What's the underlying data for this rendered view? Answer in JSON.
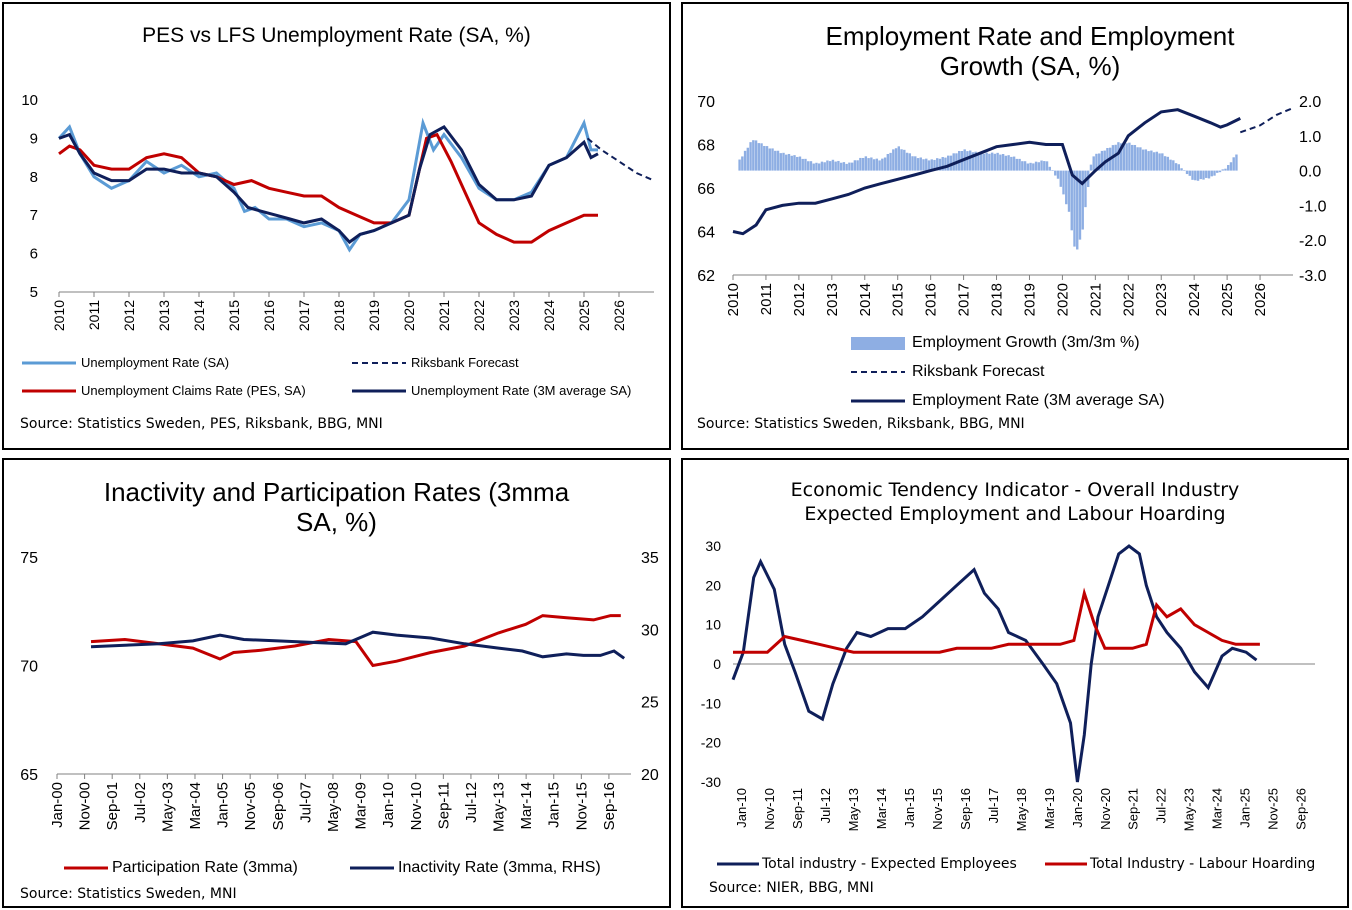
{
  "colors": {
    "light_blue": "#5b9bd5",
    "bar_blue": "#8eaee3",
    "navy": "#0f1f5a",
    "red": "#c00000",
    "axis": "#808080",
    "grid": "#d9d9d9"
  },
  "charts": [
    {
      "title": "PES vs LFS Unemployment Rate (SA, %)",
      "source": "Source: Statistics Sweden, PES, Riksbank, BBG, MNI",
      "legend": [
        "Unemployment Rate (SA)",
        "Riksbank Forecast",
        "Unemployment Claims Rate (PES, SA)",
        "Unemployment Rate (3M average  SA)"
      ]
    },
    {
      "title_line1": "Employment Rate and Employment",
      "title_line2": "Growth (SA, %)",
      "source": "Source: Statistics Sweden, Riksbank, BBG, MNI",
      "legend": [
        "Employment Growth (3m/3m %)",
        "Riksbank Forecast",
        "Employment Rate (3M average SA)"
      ]
    },
    {
      "title_line1": "Inactivity  and Participation Rates (3mma",
      "title_line2": "SA, %)",
      "source": "Source: Statistics Sweden, MNI",
      "legend": [
        "Participation Rate (3mma)",
        "Inactivity Rate (3mma, RHS)"
      ]
    },
    {
      "title_line1": "Economic Tendency Indicator - Overall Industry",
      "title_line2": "Expected Employment and Labour Hoarding",
      "source": "Source: NIER, BBG, MNI",
      "legend": [
        "Total industry - Expected Employees",
        "Total Industry - Labour Hoarding"
      ]
    }
  ],
  "chart_data": [
    {
      "type": "line",
      "title": "PES vs LFS Unemployment Rate (SA, %)",
      "x_ticks": [
        "2010",
        "2011",
        "2012",
        "2013",
        "2014",
        "2015",
        "2016",
        "2017",
        "2018",
        "2019",
        "2020",
        "2021",
        "2022",
        "2023",
        "2024",
        "2025",
        "2026"
      ],
      "xlim": [
        2010,
        2027
      ],
      "ylim": [
        5,
        10
      ],
      "y_ticks": [
        "5",
        "6",
        "7",
        "8",
        "9",
        "10"
      ],
      "series": [
        {
          "name": "Unemployment Rate (SA)",
          "x": [
            2010,
            2010.3,
            2010.6,
            2011,
            2011.5,
            2012,
            2012.5,
            2013,
            2013.5,
            2014,
            2014.5,
            2015,
            2015.3,
            2015.6,
            2016,
            2016.5,
            2017,
            2017.5,
            2018,
            2018.3,
            2018.6,
            2019,
            2019.5,
            2020,
            2020.4,
            2020.7,
            2021,
            2021.5,
            2022,
            2022.5,
            2023,
            2023.5,
            2024,
            2024.5,
            2025,
            2025.2,
            2025.4
          ],
          "y": [
            9.0,
            9.3,
            8.6,
            8.0,
            7.7,
            7.9,
            8.4,
            8.1,
            8.3,
            8.0,
            8.1,
            7.7,
            7.1,
            7.2,
            6.9,
            6.9,
            6.7,
            6.8,
            6.6,
            6.1,
            6.5,
            6.6,
            6.8,
            7.4,
            9.4,
            8.7,
            9.1,
            8.5,
            7.7,
            7.4,
            7.4,
            7.6,
            8.3,
            8.5,
            9.4,
            8.7,
            8.7
          ]
        },
        {
          "name": "Unemployment Claims Rate (PES, SA)",
          "x": [
            2010,
            2010.3,
            2010.6,
            2011,
            2011.5,
            2012,
            2012.5,
            2013,
            2013.5,
            2014,
            2014.5,
            2015,
            2015.5,
            2016,
            2016.5,
            2017,
            2017.5,
            2018,
            2018.5,
            2019,
            2019.5,
            2020,
            2020.5,
            2020.8,
            2021.2,
            2021.6,
            2022,
            2022.5,
            2023,
            2023.5,
            2024,
            2024.5,
            2025,
            2025.4
          ],
          "y": [
            8.6,
            8.8,
            8.7,
            8.3,
            8.2,
            8.2,
            8.5,
            8.6,
            8.5,
            8.1,
            8.0,
            7.8,
            7.9,
            7.7,
            7.6,
            7.5,
            7.5,
            7.2,
            7.0,
            6.8,
            6.8,
            7.0,
            9.0,
            9.1,
            8.4,
            7.6,
            6.8,
            6.5,
            6.3,
            6.3,
            6.6,
            6.8,
            7.0,
            7.0
          ]
        },
        {
          "name": "Unemployment Rate (3M average  SA)",
          "x": [
            2010,
            2010.3,
            2010.6,
            2011,
            2011.5,
            2012,
            2012.5,
            2013,
            2013.5,
            2014,
            2014.5,
            2015,
            2015.4,
            2015.8,
            2016.2,
            2016.6,
            2017,
            2017.5,
            2018,
            2018.3,
            2018.6,
            2019,
            2019.5,
            2020,
            2020.3,
            2020.6,
            2021,
            2021.5,
            2022,
            2022.5,
            2023,
            2023.5,
            2024,
            2024.5,
            2025,
            2025.2,
            2025.4
          ],
          "y": [
            9.0,
            9.1,
            8.6,
            8.1,
            7.9,
            7.9,
            8.2,
            8.2,
            8.1,
            8.1,
            8.0,
            7.6,
            7.2,
            7.1,
            7.0,
            6.9,
            6.8,
            6.9,
            6.6,
            6.3,
            6.5,
            6.6,
            6.8,
            7.0,
            8.2,
            9.1,
            9.3,
            8.7,
            7.8,
            7.4,
            7.4,
            7.5,
            8.3,
            8.5,
            8.9,
            8.5,
            8.6
          ]
        },
        {
          "name": "Riksbank Forecast",
          "x": [
            2025.1,
            2025.5,
            2026,
            2026.5,
            2027
          ],
          "y": [
            9.0,
            8.7,
            8.4,
            8.1,
            7.9
          ]
        }
      ]
    },
    {
      "type": "bar+line",
      "title": "Employment Rate and Employment Growth (SA, %)",
      "x_ticks": [
        "2010",
        "2011",
        "2012",
        "2013",
        "2014",
        "2015",
        "2016",
        "2017",
        "2018",
        "2019",
        "2020",
        "2021",
        "2022",
        "2023",
        "2024",
        "2025",
        "2026"
      ],
      "xlim": [
        2010,
        2027
      ],
      "ylim_left": [
        62,
        70
      ],
      "y_ticks_left": [
        "62",
        "64",
        "66",
        "68",
        "70"
      ],
      "ylim_right": [
        -3,
        2
      ],
      "y_ticks_right": [
        "-3.0",
        "-2.0",
        "-1.0",
        "0.0",
        "1.0",
        "2.0"
      ],
      "series": [
        {
          "name": "Employment Rate (3M average SA)",
          "axis": "left",
          "x": [
            2010,
            2010.3,
            2010.7,
            2011,
            2011.5,
            2012,
            2012.5,
            2013,
            2013.5,
            2014,
            2014.5,
            2015,
            2015.5,
            2016,
            2016.5,
            2017,
            2017.5,
            2018,
            2018.5,
            2019,
            2019.5,
            2020,
            2020.3,
            2020.6,
            2021,
            2021.3,
            2021.7,
            2022,
            2022.5,
            2023,
            2023.5,
            2024,
            2024.5,
            2024.8,
            2025,
            2025.4
          ],
          "y": [
            64.0,
            63.9,
            64.3,
            65.0,
            65.2,
            65.3,
            65.3,
            65.5,
            65.7,
            66.0,
            66.2,
            66.4,
            66.6,
            66.8,
            67.0,
            67.3,
            67.6,
            67.9,
            68.0,
            68.1,
            68.0,
            68.0,
            66.6,
            66.2,
            66.8,
            67.2,
            67.6,
            68.4,
            69.0,
            69.5,
            69.6,
            69.3,
            69.0,
            68.8,
            68.9,
            69.2
          ]
        },
        {
          "name": "Employment Growth (3m/3m %)",
          "axis": "right",
          "x": [
            2010.2,
            2010.6,
            2011,
            2011.5,
            2012,
            2012.5,
            2013,
            2013.5,
            2014,
            2014.5,
            2015,
            2015.5,
            2016,
            2016.5,
            2017,
            2017.5,
            2018,
            2018.5,
            2019,
            2019.5,
            2019.9,
            2020.2,
            2020.4,
            2020.6,
            2020.9,
            2021.3,
            2021.7,
            2022,
            2022.5,
            2023,
            2023.5,
            2024,
            2024.5,
            2025,
            2025.3
          ],
          "y": [
            0.3,
            0.9,
            0.7,
            0.5,
            0.4,
            0.2,
            0.3,
            0.2,
            0.4,
            0.3,
            0.7,
            0.4,
            0.3,
            0.4,
            0.6,
            0.5,
            0.5,
            0.4,
            0.2,
            0.3,
            -0.3,
            -1.2,
            -2.4,
            -1.8,
            0.4,
            0.6,
            0.8,
            0.8,
            0.6,
            0.5,
            0.2,
            -0.3,
            -0.2,
            0.1,
            0.5
          ]
        },
        {
          "name": "Riksbank Forecast",
          "axis": "right",
          "x": [
            2025.4,
            2026,
            2026.5,
            2027
          ],
          "y": [
            1.1,
            1.3,
            1.6,
            1.8
          ]
        }
      ]
    },
    {
      "type": "line",
      "title": "Inactivity  and Participation Rates (3mma SA, %)",
      "x_ticks": [
        "Jan-00",
        "Nov-00",
        "Sep-01",
        "Jul-02",
        "May-03",
        "Mar-04",
        "Jan-05",
        "Nov-05",
        "Sep-06",
        "Jul-07",
        "May-08",
        "Mar-09",
        "Jan-10",
        "Nov-10",
        "Sep-11",
        "Jul-12",
        "May-13",
        "Mar-14",
        "Jan-15",
        "Nov-15",
        "Sep-16"
      ],
      "xlim": [
        2000.0,
        2016.9
      ],
      "ylim_left": [
        65,
        75
      ],
      "y_ticks_left": [
        "65",
        "70",
        "75"
      ],
      "ylim_right": [
        20,
        35
      ],
      "y_ticks_right": [
        "20",
        "25",
        "30",
        "35"
      ],
      "series": [
        {
          "name": "Participation Rate (3mma)",
          "axis": "left",
          "x": [
            2001,
            2002,
            2003,
            2004,
            2004.8,
            2005.2,
            2006,
            2007,
            2008,
            2008.8,
            2009.3,
            2010,
            2011,
            2012,
            2013,
            2013.8,
            2014.3,
            2015,
            2015.8,
            2016.3,
            2016.6
          ],
          "y": [
            71.1,
            71.2,
            71.0,
            70.8,
            70.3,
            70.6,
            70.7,
            70.9,
            71.2,
            71.1,
            70.0,
            70.2,
            70.6,
            70.9,
            71.5,
            71.9,
            72.3,
            72.2,
            72.1,
            72.3,
            72.3
          ]
        },
        {
          "name": "Inactivity Rate (3mma, RHS)",
          "axis": "right",
          "x": [
            2001,
            2002,
            2003,
            2004,
            2004.8,
            2005.5,
            2006.5,
            2007.5,
            2008.5,
            2009.3,
            2010,
            2011,
            2012,
            2013,
            2013.7,
            2014.3,
            2015,
            2015.5,
            2016,
            2016.4,
            2016.7
          ],
          "y": [
            28.8,
            28.9,
            29.0,
            29.2,
            29.6,
            29.3,
            29.2,
            29.1,
            29.0,
            29.8,
            29.6,
            29.4,
            29.0,
            28.7,
            28.5,
            28.1,
            28.3,
            28.2,
            28.2,
            28.5,
            28.0
          ]
        }
      ]
    },
    {
      "type": "line",
      "title": "Economic Tendency Indicator - Overall Industry Expected Employment and Labour Hoarding",
      "x_ticks": [
        "Jan-10",
        "Nov-10",
        "Sep-11",
        "Jul-12",
        "May-13",
        "Mar-14",
        "Jan-15",
        "Nov-15",
        "Sep-16",
        "Jul-17",
        "May-18",
        "Mar-19",
        "Jan-20",
        "Nov-20",
        "Sep-21",
        "Jul-22",
        "May-23",
        "Mar-24",
        "Jan-25",
        "Nov-25",
        "Sep-26"
      ],
      "xlim": [
        2010.0,
        2026.9
      ],
      "ylim": [
        -30,
        30
      ],
      "y_ticks": [
        "-30",
        "-20",
        "-10",
        "0",
        "10",
        "20",
        "30"
      ],
      "series": [
        {
          "name": "Total industry - Expected Employees",
          "x": [
            2010,
            2010.3,
            2010.6,
            2010.8,
            2011.2,
            2011.5,
            2011.8,
            2012.2,
            2012.6,
            2012.9,
            2013.3,
            2013.6,
            2014,
            2014.5,
            2015,
            2015.5,
            2016,
            2016.5,
            2017,
            2017.3,
            2017.7,
            2018,
            2018.5,
            2019,
            2019.4,
            2019.8,
            2020,
            2020.2,
            2020.4,
            2020.6,
            2020.9,
            2021.2,
            2021.5,
            2021.8,
            2022,
            2022.3,
            2022.6,
            2023,
            2023.4,
            2023.8,
            2024.2,
            2024.5,
            2024.9,
            2025.2
          ],
          "y": [
            -4,
            3,
            22,
            26,
            19,
            5,
            -2,
            -12,
            -14,
            -5,
            4,
            8,
            7,
            9,
            9,
            12,
            16,
            20,
            24,
            18,
            14,
            8,
            6,
            0,
            -5,
            -15,
            -30,
            -18,
            0,
            12,
            20,
            28,
            32,
            28,
            20,
            12,
            8,
            4,
            -2,
            -6,
            2,
            4,
            3,
            1
          ]
        },
        {
          "name": "Total Industry - Labour Hoarding",
          "x": [
            2010,
            2010.5,
            2011,
            2011.5,
            2012,
            2012.5,
            2013,
            2013.5,
            2014,
            2014.5,
            2015,
            2015.5,
            2016,
            2016.5,
            2017,
            2017.5,
            2018,
            2018.5,
            2019,
            2019.5,
            2019.9,
            2020.2,
            2020.5,
            2020.8,
            2021.2,
            2021.6,
            2022,
            2022.3,
            2022.6,
            2023,
            2023.4,
            2023.8,
            2024.2,
            2024.6,
            2025,
            2025.3
          ],
          "y": [
            3,
            3,
            3,
            7,
            6,
            5,
            4,
            3,
            3,
            3,
            3,
            3,
            3,
            4,
            4,
            4,
            5,
            5,
            5,
            5,
            6,
            18,
            10,
            4,
            4,
            4,
            5,
            15,
            12,
            14,
            10,
            8,
            6,
            5,
            5,
            5
          ]
        }
      ]
    }
  ]
}
